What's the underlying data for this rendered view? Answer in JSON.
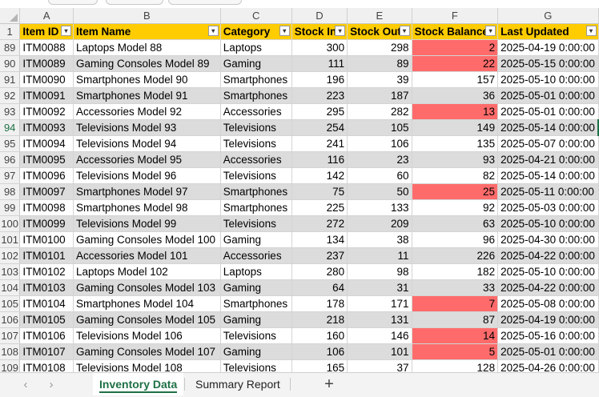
{
  "columns": [
    "A",
    "B",
    "C",
    "D",
    "E",
    "F",
    "G"
  ],
  "header": {
    "row_number": "1",
    "labels": [
      "Item ID",
      "Item Name",
      "Category",
      "Stock In",
      "Stock Out",
      "Stock Balance",
      "Last Updated"
    ]
  },
  "rows": [
    {
      "n": "89",
      "id": "ITM0088",
      "name": "Laptops Model 88",
      "cat": "Laptops",
      "in": "300",
      "out": "298",
      "bal": "2",
      "upd": "2025-04-19 0:00:00",
      "low": true
    },
    {
      "n": "90",
      "id": "ITM0089",
      "name": "Gaming Consoles Model 89",
      "cat": "Gaming",
      "in": "111",
      "out": "89",
      "bal": "22",
      "upd": "2025-05-15 0:00:00",
      "low": true
    },
    {
      "n": "91",
      "id": "ITM0090",
      "name": "Smartphones Model 90",
      "cat": "Smartphones",
      "in": "196",
      "out": "39",
      "bal": "157",
      "upd": "2025-05-10 0:00:00",
      "low": false
    },
    {
      "n": "92",
      "id": "ITM0091",
      "name": "Smartphones Model 91",
      "cat": "Smartphones",
      "in": "223",
      "out": "187",
      "bal": "36",
      "upd": "2025-05-01 0:00:00",
      "low": false
    },
    {
      "n": "93",
      "id": "ITM0092",
      "name": "Accessories Model 92",
      "cat": "Accessories",
      "in": "295",
      "out": "282",
      "bal": "13",
      "upd": "2025-05-01 0:00:00",
      "low": true
    },
    {
      "n": "94",
      "id": "ITM0093",
      "name": "Televisions Model 93",
      "cat": "Televisions",
      "in": "254",
      "out": "105",
      "bal": "149",
      "upd": "2025-05-14 0:00:00",
      "low": false
    },
    {
      "n": "95",
      "id": "ITM0094",
      "name": "Televisions Model 94",
      "cat": "Televisions",
      "in": "241",
      "out": "106",
      "bal": "135",
      "upd": "2025-05-07 0:00:00",
      "low": false
    },
    {
      "n": "96",
      "id": "ITM0095",
      "name": "Accessories Model 95",
      "cat": "Accessories",
      "in": "116",
      "out": "23",
      "bal": "93",
      "upd": "2025-04-21 0:00:00",
      "low": false
    },
    {
      "n": "97",
      "id": "ITM0096",
      "name": "Televisions Model 96",
      "cat": "Televisions",
      "in": "142",
      "out": "60",
      "bal": "82",
      "upd": "2025-05-14 0:00:00",
      "low": false
    },
    {
      "n": "98",
      "id": "ITM0097",
      "name": "Smartphones Model 97",
      "cat": "Smartphones",
      "in": "75",
      "out": "50",
      "bal": "25",
      "upd": "2025-05-11 0:00:00",
      "low": true
    },
    {
      "n": "99",
      "id": "ITM0098",
      "name": "Smartphones Model 98",
      "cat": "Smartphones",
      "in": "225",
      "out": "133",
      "bal": "92",
      "upd": "2025-05-03 0:00:00",
      "low": false
    },
    {
      "n": "100",
      "id": "ITM0099",
      "name": "Televisions Model 99",
      "cat": "Televisions",
      "in": "272",
      "out": "209",
      "bal": "63",
      "upd": "2025-05-10 0:00:00",
      "low": false
    },
    {
      "n": "101",
      "id": "ITM0100",
      "name": "Gaming Consoles Model 100",
      "cat": "Gaming",
      "in": "134",
      "out": "38",
      "bal": "96",
      "upd": "2025-04-30 0:00:00",
      "low": false
    },
    {
      "n": "102",
      "id": "ITM0101",
      "name": "Accessories Model 101",
      "cat": "Accessories",
      "in": "237",
      "out": "11",
      "bal": "226",
      "upd": "2025-04-22 0:00:00",
      "low": false
    },
    {
      "n": "103",
      "id": "ITM0102",
      "name": "Laptops Model 102",
      "cat": "Laptops",
      "in": "280",
      "out": "98",
      "bal": "182",
      "upd": "2025-05-10 0:00:00",
      "low": false
    },
    {
      "n": "104",
      "id": "ITM0103",
      "name": "Gaming Consoles Model 103",
      "cat": "Gaming",
      "in": "64",
      "out": "31",
      "bal": "33",
      "upd": "2025-04-22 0:00:00",
      "low": false
    },
    {
      "n": "105",
      "id": "ITM0104",
      "name": "Smartphones Model 104",
      "cat": "Smartphones",
      "in": "178",
      "out": "171",
      "bal": "7",
      "upd": "2025-05-08 0:00:00",
      "low": true
    },
    {
      "n": "106",
      "id": "ITM0105",
      "name": "Gaming Consoles Model 105",
      "cat": "Gaming",
      "in": "218",
      "out": "131",
      "bal": "87",
      "upd": "2025-04-19 0:00:00",
      "low": false
    },
    {
      "n": "107",
      "id": "ITM0106",
      "name": "Televisions Model 106",
      "cat": "Televisions",
      "in": "160",
      "out": "146",
      "bal": "14",
      "upd": "2025-05-16 0:00:00",
      "low": true
    },
    {
      "n": "108",
      "id": "ITM0107",
      "name": "Gaming Consoles Model 107",
      "cat": "Gaming",
      "in": "106",
      "out": "101",
      "bal": "5",
      "upd": "2025-05-01 0:00:00",
      "low": true
    },
    {
      "n": "109",
      "id": "ITM0108",
      "name": "Televisions Model 108",
      "cat": "Televisions",
      "in": "165",
      "out": "37",
      "bal": "128",
      "upd": "2025-04-26 0:00:00",
      "low": false
    }
  ],
  "colors": {
    "header_fill": "#ffcc00",
    "band_fill": "#dcdcdc",
    "low_stock_fill": "#ff6b6b",
    "active_tab": "#1e7145"
  },
  "active_row": "94",
  "tabs": {
    "prev_icon": "‹",
    "next_icon": "›",
    "sheets": [
      {
        "label": "Inventory Data",
        "active": true
      },
      {
        "label": "Summary Report",
        "active": false
      }
    ],
    "add_icon": "+"
  }
}
